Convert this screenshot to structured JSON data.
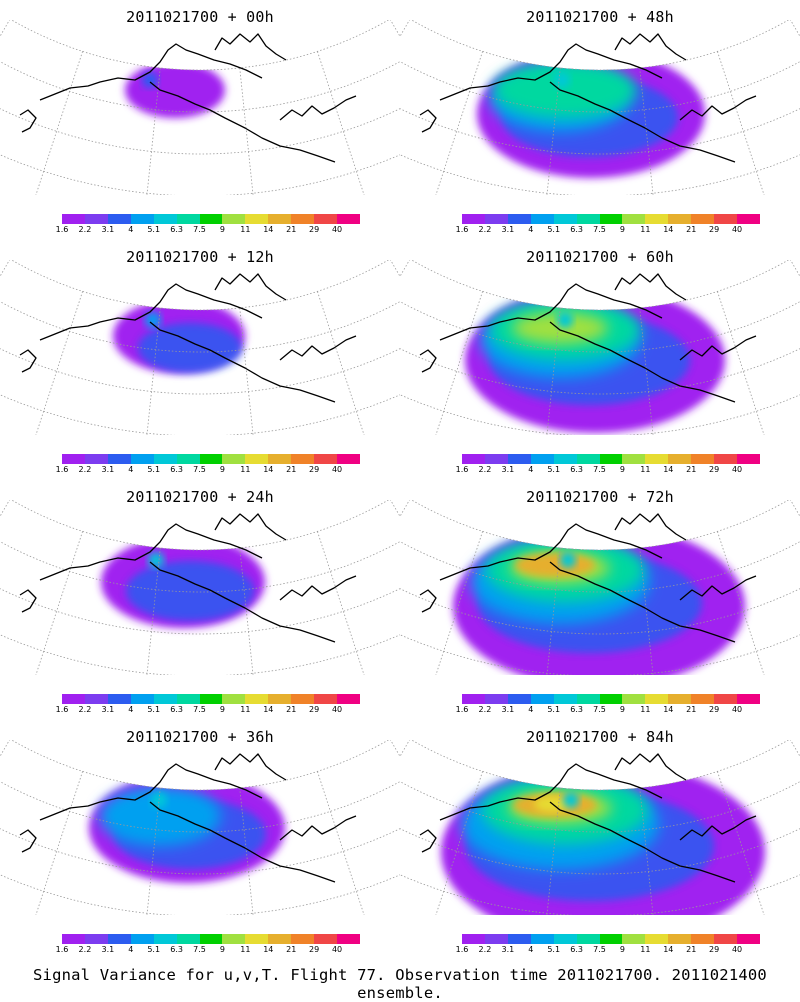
{
  "panels": [
    {
      "title": "2011021700 + 00h",
      "lead_hours": 0
    },
    {
      "title": "2011021700 + 48h",
      "lead_hours": 48
    },
    {
      "title": "2011021700 + 12h",
      "lead_hours": 12
    },
    {
      "title": "2011021700 + 60h",
      "lead_hours": 60
    },
    {
      "title": "2011021700 + 24h",
      "lead_hours": 24
    },
    {
      "title": "2011021700 + 72h",
      "lead_hours": 72
    },
    {
      "title": "2011021700 + 36h",
      "lead_hours": 36
    },
    {
      "title": "2011021700 + 84h",
      "lead_hours": 84
    }
  ],
  "colorbar": {
    "labels": [
      "1.6",
      "2.2",
      "3.1",
      "4",
      "5.1",
      "6.3",
      "7.5",
      "9",
      "11",
      "14",
      "21",
      "29",
      "40"
    ],
    "colors": [
      "#a020f0",
      "#7c3cf0",
      "#2c5cf0",
      "#00a0f0",
      "#00c8d8",
      "#00d8a0",
      "#00d000",
      "#a0e040",
      "#e6dc32",
      "#e6af2d",
      "#f08228",
      "#f04646",
      "#f00082"
    ]
  },
  "colors": {
    "coast": "#000000",
    "grid": "#9a9a9a"
  },
  "caption": "Signal Variance for u,v,T. Flight 77. Observation time 2011021700. 2011021400 ensemble."
}
